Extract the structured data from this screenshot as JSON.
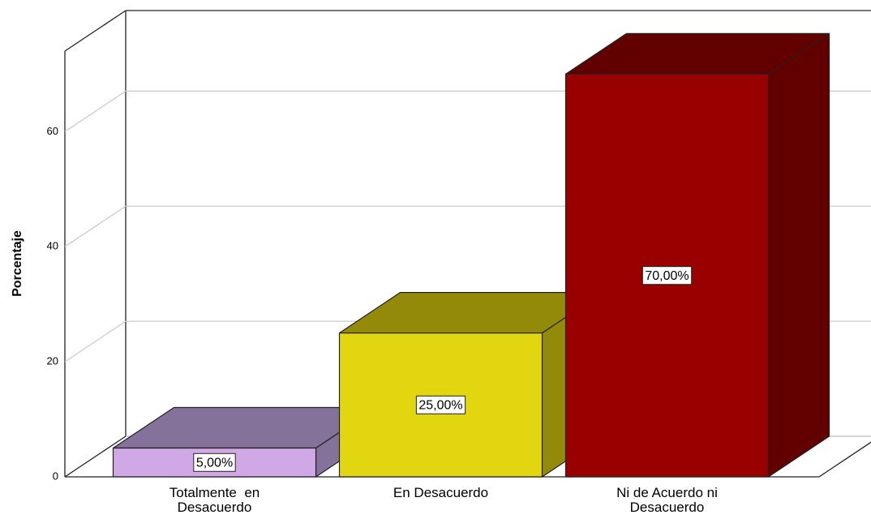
{
  "chart_data": {
    "type": "bar3d",
    "ylabel": "Porcentaje",
    "categories": [
      "Totalmente  en Desacuerdo",
      "En Desacuerdo",
      "Ni de Acuerdo ni Desacuerdo"
    ],
    "values": [
      5,
      25,
      70
    ],
    "value_labels": [
      "5,00%",
      "25,00%",
      "70,00%"
    ],
    "colors": [
      "#d1a8e6",
      "#e2d610",
      "#990000"
    ],
    "shade_colors": [
      "#84729a",
      "#938a0a",
      "#620000"
    ],
    "ylim": [
      0,
      74
    ],
    "yticks": [
      0,
      20,
      40,
      60
    ],
    "grid": true
  }
}
